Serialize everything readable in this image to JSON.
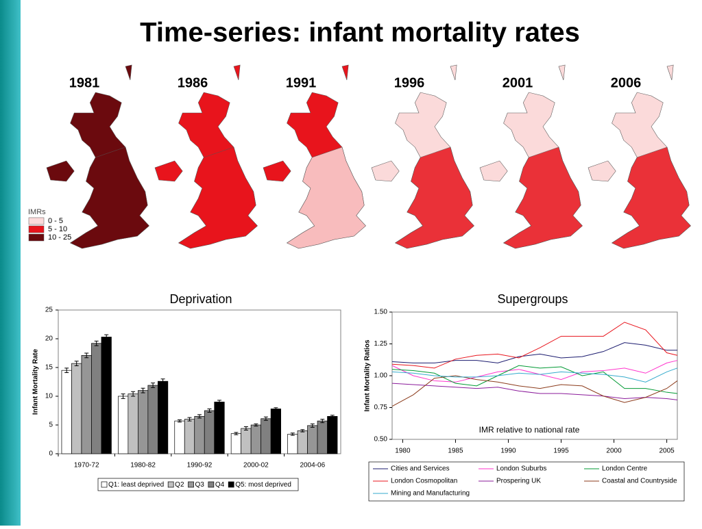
{
  "title": "Time-series: infant mortality rates",
  "maps": {
    "years": [
      "1981",
      "1986",
      "1991",
      "1996",
      "2001",
      "2006"
    ],
    "legend_title": "IMRs",
    "legend": [
      {
        "label": "0 - 5",
        "color": "#fbdada"
      },
      {
        "label": "5 - 10",
        "color": "#e8141c"
      },
      {
        "label": "10 - 25",
        "color": "#6b0a0e"
      }
    ]
  },
  "chart_data": [
    {
      "type": "bar",
      "title": "Deprivation",
      "ylabel": "Infant Mortality Rate",
      "categories": [
        "1970-72",
        "1980-82",
        "1990-92",
        "2000-02",
        "2004-06"
      ],
      "series": [
        {
          "name": "Q1: least deprived",
          "color": "#ffffff",
          "values": [
            14.5,
            10.0,
            5.7,
            3.5,
            3.4
          ],
          "errors": [
            0.4,
            0.4,
            0.2,
            0.2,
            0.2
          ]
        },
        {
          "name": "Q2",
          "color": "#c0c0c0",
          "values": [
            15.7,
            10.4,
            6.0,
            4.4,
            4.0
          ],
          "errors": [
            0.4,
            0.4,
            0.3,
            0.3,
            0.2
          ]
        },
        {
          "name": "Q3",
          "color": "#969696",
          "values": [
            17.1,
            11.0,
            6.5,
            5.0,
            4.9
          ],
          "errors": [
            0.4,
            0.4,
            0.3,
            0.2,
            0.3
          ]
        },
        {
          "name": "Q4",
          "color": "#808080",
          "values": [
            19.2,
            11.9,
            7.5,
            6.1,
            5.7
          ],
          "errors": [
            0.4,
            0.4,
            0.3,
            0.3,
            0.3
          ]
        },
        {
          "name": "Q5: most deprived",
          "color": "#000000",
          "values": [
            20.3,
            12.6,
            9.0,
            7.8,
            6.5
          ],
          "errors": [
            0.4,
            0.4,
            0.3,
            0.2,
            0.2
          ]
        }
      ],
      "ylim": [
        0,
        25
      ],
      "yticks": [
        0,
        5,
        10,
        15,
        20,
        25
      ]
    },
    {
      "type": "line",
      "title": "Supergroups",
      "ylabel": "Infant Mortality Ratios",
      "annotation": "IMR relative to national rate",
      "x": [
        1979,
        1981,
        1983,
        1985,
        1987,
        1989,
        1991,
        1993,
        1995,
        1997,
        1999,
        2001,
        2003,
        2005,
        2006
      ],
      "series": [
        {
          "name": "Cities and Services",
          "color": "#1a1a6e",
          "values": [
            1.11,
            1.1,
            1.1,
            1.12,
            1.12,
            1.1,
            1.15,
            1.17,
            1.14,
            1.15,
            1.19,
            1.26,
            1.24,
            1.2,
            1.2
          ]
        },
        {
          "name": "London Suburbs",
          "color": "#ff33cc",
          "values": [
            1.08,
            1.0,
            0.96,
            0.95,
            0.99,
            1.03,
            1.05,
            1.01,
            0.97,
            1.03,
            1.04,
            1.06,
            1.02,
            1.1,
            1.12
          ]
        },
        {
          "name": "London Centre",
          "color": "#009933",
          "values": [
            1.05,
            1.04,
            1.02,
            0.94,
            0.92,
            1.0,
            1.08,
            1.06,
            1.07,
            1.0,
            1.03,
            0.9,
            0.9,
            0.87,
            0.86
          ]
        },
        {
          "name": "London Cosmopolitan",
          "color": "#e8141c",
          "values": [
            1.09,
            1.08,
            1.06,
            1.13,
            1.16,
            1.17,
            1.14,
            1.22,
            1.31,
            1.31,
            1.31,
            1.42,
            1.36,
            1.18,
            1.16
          ]
        },
        {
          "name": "Prospering UK",
          "color": "#8a1a9a",
          "values": [
            0.94,
            0.93,
            0.92,
            0.91,
            0.9,
            0.91,
            0.88,
            0.86,
            0.86,
            0.85,
            0.84,
            0.82,
            0.83,
            0.82,
            0.81
          ]
        },
        {
          "name": "Coastal and Countryside",
          "color": "#8b3a1a",
          "values": [
            0.76,
            0.85,
            0.98,
            1.0,
            0.97,
            0.95,
            0.92,
            0.9,
            0.93,
            0.92,
            0.84,
            0.79,
            0.83,
            0.9,
            0.96
          ]
        },
        {
          "name": "Mining and Manufacturing",
          "color": "#33aacc",
          "values": [
            1.03,
            1.02,
            1.0,
            0.99,
            0.99,
            1.0,
            1.02,
            1.01,
            1.03,
            1.02,
            1.01,
            0.99,
            0.95,
            1.03,
            1.06
          ]
        }
      ],
      "xlim": [
        1979,
        2006
      ],
      "xticks": [
        1980,
        1985,
        1990,
        1995,
        2000,
        2005
      ],
      "ylim": [
        0.5,
        1.5
      ],
      "yticks": [
        {
          "value": 0.5,
          "label": "0.50"
        },
        {
          "value": 0.75,
          "label": "0.75"
        },
        {
          "value": 1,
          "label": "1.00"
        },
        {
          "value": 1.25,
          "label": "1.25"
        },
        {
          "value": 1.5,
          "label": "1.50"
        }
      ]
    }
  ]
}
